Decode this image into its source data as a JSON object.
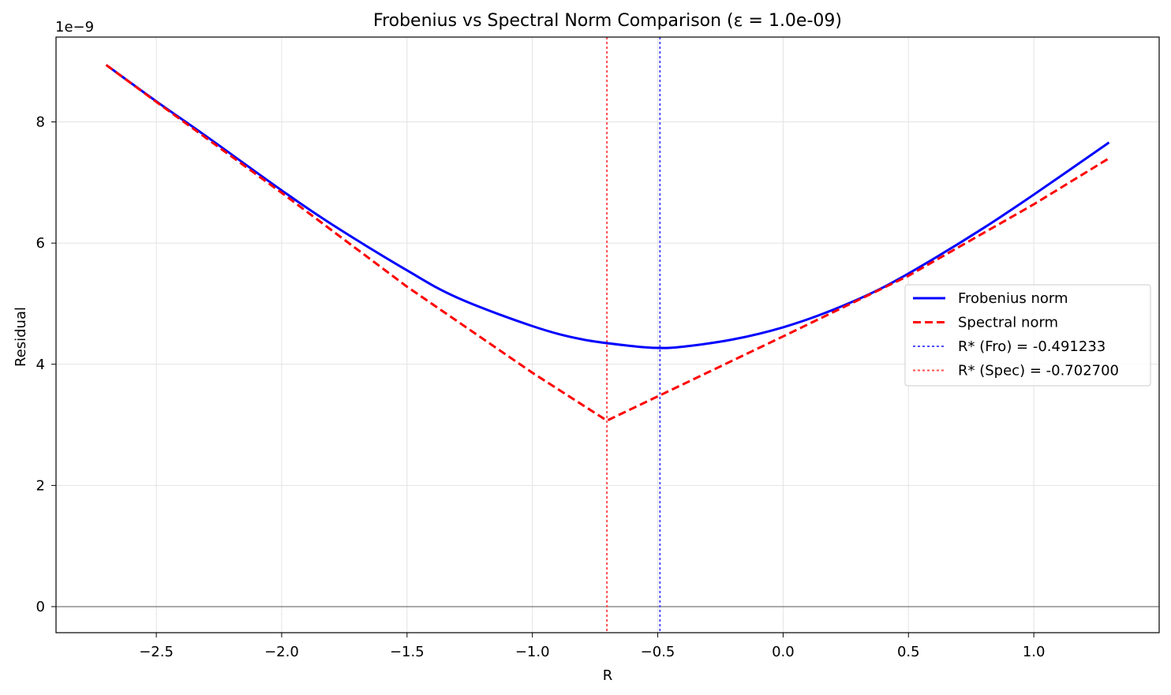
{
  "chart_data": {
    "type": "line",
    "title": "Frobenius vs Spectral Norm Comparison (ε = 1.0e-09)",
    "xlabel": "R",
    "ylabel": "Residual",
    "y_scale_label": "1e−9",
    "y_scale_factor": 1e-09,
    "xlim": [
      -2.9,
      1.5
    ],
    "ylim": [
      -0.43,
      9.4
    ],
    "xticks": [
      -2.5,
      -2.0,
      -1.5,
      -1.0,
      -0.5,
      0.0,
      0.5,
      1.0
    ],
    "xtick_labels": [
      "−2.5",
      "−2.0",
      "−1.5",
      "−1.0",
      "−0.5",
      "0.0",
      "0.5",
      "1.0"
    ],
    "yticks": [
      0,
      2,
      4,
      6,
      8
    ],
    "ytick_labels": [
      "0",
      "2",
      "4",
      "6",
      "8"
    ],
    "grid": true,
    "zero_line": true,
    "legend_position": "center-right",
    "series": [
      {
        "name": "Frobenius norm",
        "color": "#0000ff",
        "style": "solid",
        "x": [
          -2.7,
          -2.5,
          -2.3,
          -2.0,
          -1.8,
          -1.5,
          -1.3,
          -1.0,
          -0.8,
          -0.6,
          -0.5,
          -0.4,
          -0.2,
          0.0,
          0.2,
          0.4,
          0.6,
          0.8,
          1.0,
          1.3
        ],
        "y": [
          8.94,
          8.34,
          7.76,
          6.87,
          6.31,
          5.55,
          5.1,
          4.63,
          4.41,
          4.3,
          4.27,
          4.29,
          4.41,
          4.61,
          4.9,
          5.27,
          5.74,
          6.25,
          6.8,
          7.66
        ]
      },
      {
        "name": "Spectral norm",
        "color": "#ff0000",
        "style": "dashed",
        "x": [
          -2.7,
          -2.5,
          -2.0,
          -1.5,
          -1.0,
          -0.7027,
          -0.5,
          0.0,
          0.5,
          1.0,
          1.3
        ],
        "y": [
          8.94,
          8.33,
          6.83,
          5.28,
          3.86,
          3.07,
          3.47,
          4.46,
          5.46,
          6.64,
          7.4
        ]
      }
    ],
    "vlines": [
      {
        "name": "R* (Fro) = -0.491233",
        "x": -0.491233,
        "color": "#4d4dff",
        "style": "dotted"
      },
      {
        "name": "R* (Spec) = -0.702700",
        "x": -0.7027,
        "color": "#ff4d4d",
        "style": "dotted"
      }
    ]
  }
}
